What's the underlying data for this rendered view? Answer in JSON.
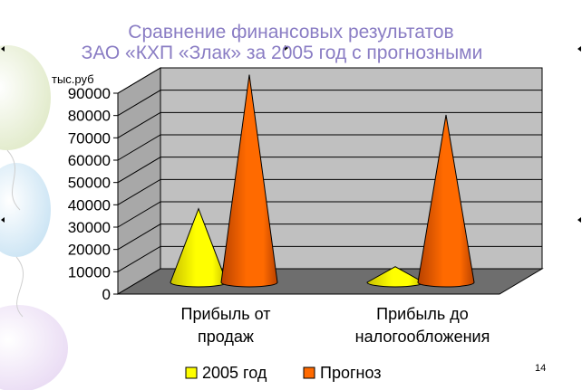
{
  "slide": {
    "title_line1": "Сравнение финансовых результатов",
    "title_line2": "ЗАО «КХП «Злак» за 2005 год с  прогнозными",
    "page_number": "14"
  },
  "colors": {
    "title": "#8a7dc4",
    "series_2005": "#ffff00",
    "series_forecast": "#ff6a00",
    "wall": "#c0c0c0",
    "floor": "#6e6e6e"
  },
  "chart_data": {
    "type": "bar",
    "shape": "cone-3d",
    "ylabel": "тыс.руб",
    "ylim": [
      0,
      90000
    ],
    "yticks": [
      "0",
      "10000",
      "20000",
      "30000",
      "40000",
      "50000",
      "60000",
      "70000",
      "80000",
      "90000"
    ],
    "categories": [
      [
        "Прибыль от",
        "продаж"
      ],
      [
        "Прибыль до",
        "налогообложения"
      ]
    ],
    "series": [
      {
        "name": "2005 год",
        "values": [
          33000,
          7000
        ]
      },
      {
        "name": "Прогноз",
        "values": [
          93000,
          75000
        ]
      }
    ],
    "legend_position": "bottom",
    "grid": true
  }
}
